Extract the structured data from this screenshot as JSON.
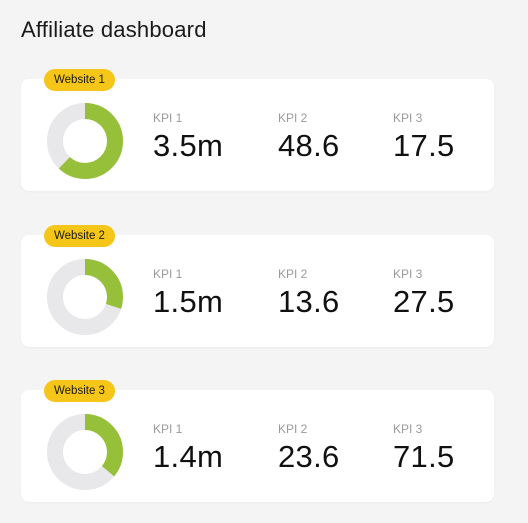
{
  "page": {
    "title": "Affiliate dashboard"
  },
  "colors": {
    "accent": "#96c03a",
    "track": "#e8e8ea",
    "badge": "#f5c518"
  },
  "cards": [
    {
      "badge": "Website 1",
      "progress": 0.62,
      "kpis": [
        {
          "label": "KPI 1",
          "value": "3.5m"
        },
        {
          "label": "KPI 2",
          "value": "48.6"
        },
        {
          "label": "KPI 3",
          "value": "17.5"
        }
      ]
    },
    {
      "badge": "Website 2",
      "progress": 0.3,
      "kpis": [
        {
          "label": "KPI 1",
          "value": "1.5m"
        },
        {
          "label": "KPI 2",
          "value": "13.6"
        },
        {
          "label": "KPI 3",
          "value": "27.5"
        }
      ]
    },
    {
      "badge": "Website 3",
      "progress": 0.36,
      "kpis": [
        {
          "label": "KPI 1",
          "value": "1.4m"
        },
        {
          "label": "KPI 2",
          "value": "23.6"
        },
        {
          "label": "KPI 3",
          "value": "71.5"
        }
      ]
    }
  ]
}
